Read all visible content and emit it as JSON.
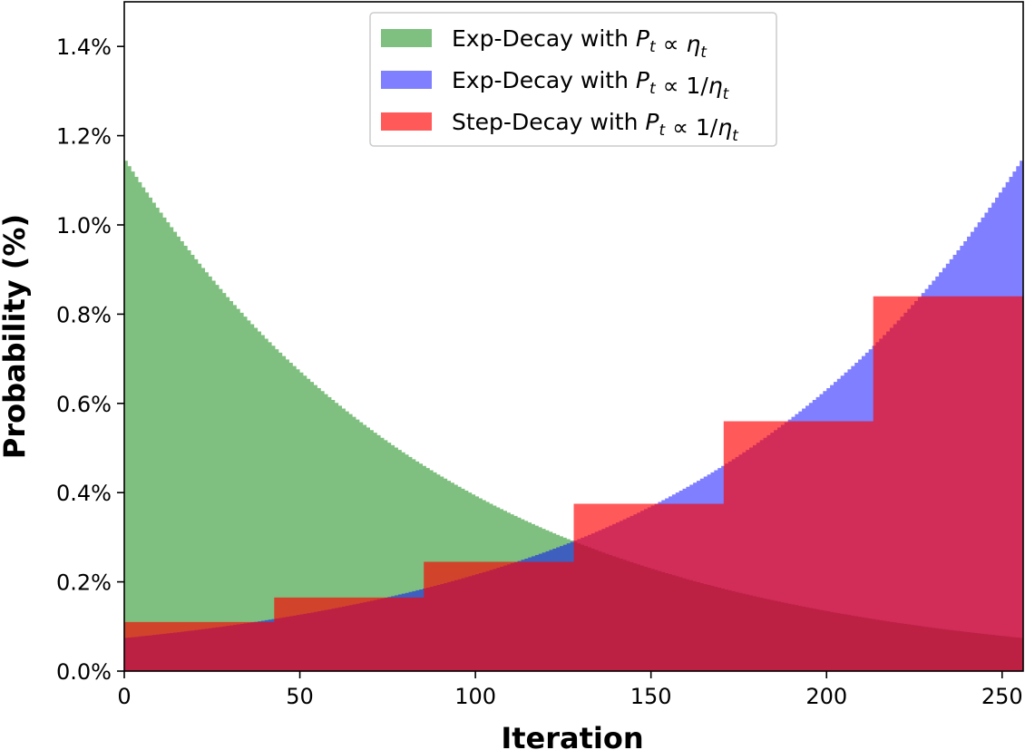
{
  "chart_data": {
    "type": "area",
    "xlabel": "Iteration",
    "ylabel": "Probability (%)",
    "xlim": [
      0,
      256
    ],
    "ylim": [
      0,
      1.5
    ],
    "x_ticks": [
      0,
      50,
      100,
      150,
      200,
      250
    ],
    "y_ticks": [
      0.0,
      0.2,
      0.4,
      0.6,
      0.8,
      1.0,
      1.2,
      1.4
    ],
    "y_tick_format": "percent_1dp",
    "grid": false,
    "legend_position": "top-center",
    "series": [
      {
        "name": "Exp-Decay with P_t ∝ η_t",
        "legend": {
          "prefix": "Exp-Decay with ",
          "P": "P",
          "sub": "t",
          "rel": " ∝ ",
          "rhs": "",
          "eta": "η",
          "eta_sub": "t"
        },
        "color": "#008000",
        "opacity": 0.5,
        "kind": "exp",
        "x": [
          0,
          32,
          64,
          96,
          128,
          160,
          192,
          224,
          256
        ],
        "values": [
          1.15,
          0.816,
          0.579,
          0.411,
          0.291,
          0.207,
          0.147,
          0.104,
          0.074
        ]
      },
      {
        "name": "Exp-Decay with P_t ∝ 1/η_t",
        "legend": {
          "prefix": "Exp-Decay with ",
          "P": "P",
          "sub": "t",
          "rel": " ∝ ",
          "rhs": "1/",
          "eta": "η",
          "eta_sub": "t"
        },
        "color": "#0000ff",
        "opacity": 0.5,
        "kind": "exp",
        "x": [
          0,
          32,
          64,
          96,
          128,
          160,
          192,
          224,
          256
        ],
        "values": [
          0.074,
          0.104,
          0.147,
          0.207,
          0.291,
          0.411,
          0.579,
          0.816,
          1.15
        ]
      },
      {
        "name": "Step-Decay with P_t ∝ 1/η_t",
        "legend": {
          "prefix": "Step-Decay with ",
          "P": "P",
          "sub": "t",
          "rel": " ∝ ",
          "rhs": "1/",
          "eta": "η",
          "eta_sub": "t"
        },
        "color": "#ff0000",
        "opacity": 0.65,
        "kind": "step",
        "edges": [
          0,
          42.7,
          85.3,
          128,
          170.7,
          213.3,
          256
        ],
        "values": [
          0.11,
          0.165,
          0.245,
          0.375,
          0.56,
          0.84
        ]
      }
    ]
  }
}
